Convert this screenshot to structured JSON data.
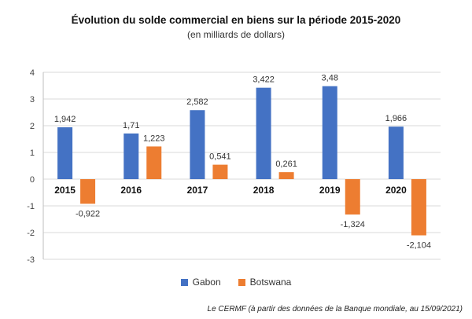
{
  "chart_data": {
    "type": "bar",
    "title": "Évolution du solde commercial en biens sur la période 2015-2020",
    "subtitle": "(en milliards de dollars)",
    "categories": [
      "2015",
      "2016",
      "2017",
      "2018",
      "2019",
      "2020"
    ],
    "series": [
      {
        "name": "Gabon",
        "color": "#4472C4",
        "values": [
          1.942,
          1.71,
          2.582,
          3.422,
          3.48,
          1.966
        ],
        "labels": [
          "1,942",
          "1,71",
          "2,582",
          "3,422",
          "3,48",
          "1,966"
        ]
      },
      {
        "name": "Botswana",
        "color": "#ED7D31",
        "values": [
          -0.922,
          1.223,
          0.541,
          0.261,
          -1.324,
          -2.104
        ],
        "labels": [
          "-0,922",
          "1,223",
          "0,541",
          "0,261",
          "-1,324",
          "-2,104"
        ]
      }
    ],
    "ylim": [
      -3,
      4
    ],
    "yticks": [
      4,
      3,
      2,
      1,
      0,
      -1,
      -2,
      -3
    ],
    "grid": true,
    "legend_position": "bottom"
  },
  "source": "Le CERMF (à partir des données de la Banque mondiale, au 15/09/2021)"
}
